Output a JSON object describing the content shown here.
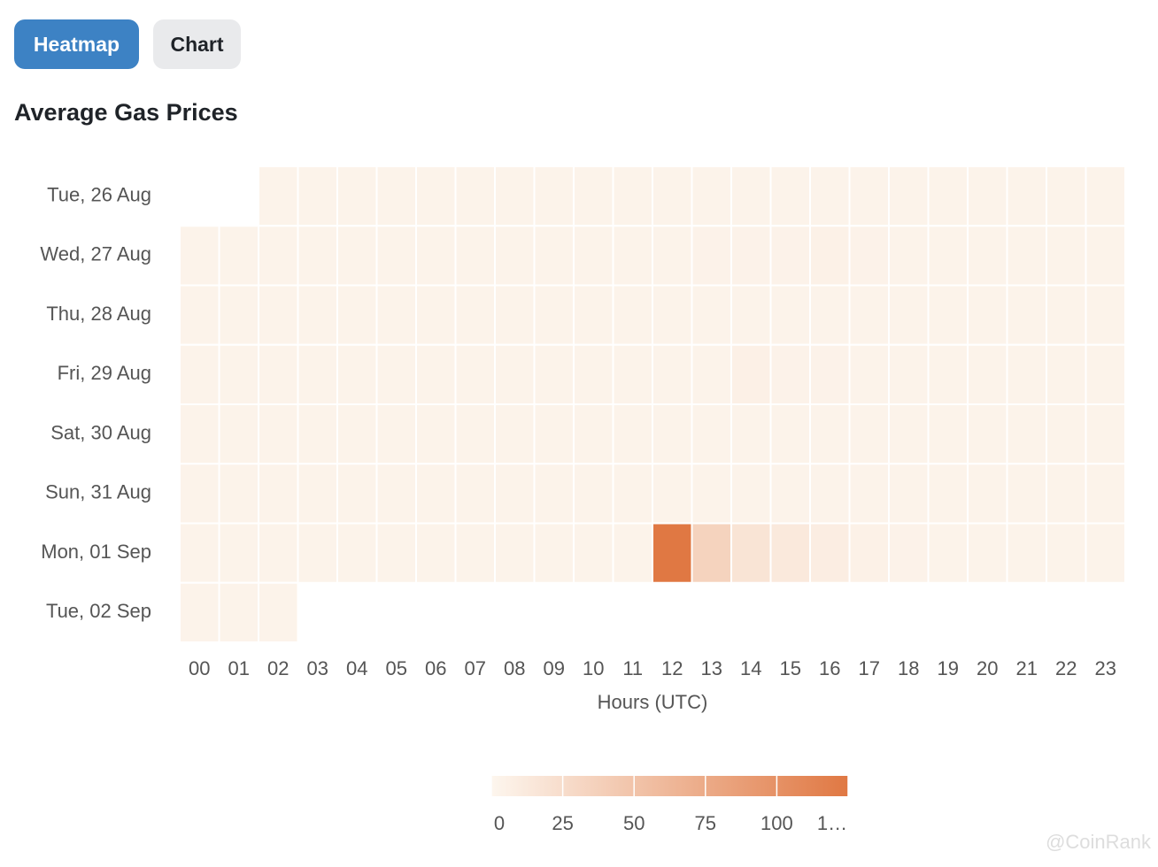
{
  "tabs": [
    "Heatmap",
    "Chart"
  ],
  "watermark": "@CoinRank",
  "chart_data": {
    "type": "heatmap",
    "title": "Average Gas Prices",
    "x_label": "Hours (UTC)",
    "categories": [
      "00",
      "01",
      "02",
      "03",
      "04",
      "05",
      "06",
      "07",
      "08",
      "09",
      "10",
      "11",
      "12",
      "13",
      "14",
      "15",
      "16",
      "17",
      "18",
      "19",
      "20",
      "21",
      "22",
      "23"
    ],
    "rows": [
      "Tue, 26 Aug",
      "Wed, 27 Aug",
      "Thu, 28 Aug",
      "Fri, 29 Aug",
      "Sat, 30 Aug",
      "Sun, 31 Aug",
      "Mon, 01 Sep",
      "Tue, 02 Sep"
    ],
    "values": [
      [
        null,
        null,
        3,
        3,
        3,
        3,
        3,
        3,
        3,
        3,
        3,
        3,
        3,
        3,
        3,
        3,
        3,
        3,
        3,
        3,
        3,
        3,
        3,
        3
      ],
      [
        3,
        3,
        3,
        3,
        3,
        3,
        3,
        3,
        3,
        3,
        3,
        3,
        3,
        4,
        4,
        4,
        5,
        4,
        3,
        3,
        3,
        3,
        3,
        3
      ],
      [
        3,
        3,
        3,
        3,
        3,
        3,
        3,
        3,
        3,
        3,
        3,
        3,
        3,
        3,
        3,
        3,
        3,
        3,
        3,
        3,
        3,
        3,
        3,
        3
      ],
      [
        3,
        3,
        3,
        3,
        3,
        3,
        3,
        3,
        3,
        3,
        3,
        3,
        3,
        3,
        6,
        4,
        4,
        3,
        3,
        3,
        3,
        3,
        3,
        3
      ],
      [
        3,
        3,
        3,
        3,
        3,
        3,
        3,
        3,
        3,
        3,
        3,
        3,
        3,
        3,
        3,
        3,
        3,
        3,
        3,
        3,
        3,
        3,
        3,
        3
      ],
      [
        3,
        3,
        3,
        3,
        3,
        3,
        3,
        3,
        3,
        3,
        3,
        3,
        3,
        3,
        3,
        3,
        3,
        3,
        3,
        3,
        3,
        3,
        3,
        3
      ],
      [
        3,
        3,
        3,
        3,
        3,
        3,
        3,
        3,
        3,
        3,
        3,
        3,
        125,
        35,
        18,
        13,
        9,
        5,
        4,
        3,
        3,
        3,
        3,
        3
      ],
      [
        3,
        3,
        3,
        null,
        null,
        null,
        null,
        null,
        null,
        null,
        null,
        null,
        null,
        null,
        null,
        null,
        null,
        null,
        null,
        null,
        null,
        null,
        null,
        null
      ]
    ],
    "colorscale": [
      "#fdf6ee",
      "#e07843"
    ],
    "clim": [
      0,
      125
    ],
    "cticks": [
      0,
      25,
      50,
      75,
      100,
      {
        "value": 125,
        "label": "1…"
      }
    ]
  }
}
